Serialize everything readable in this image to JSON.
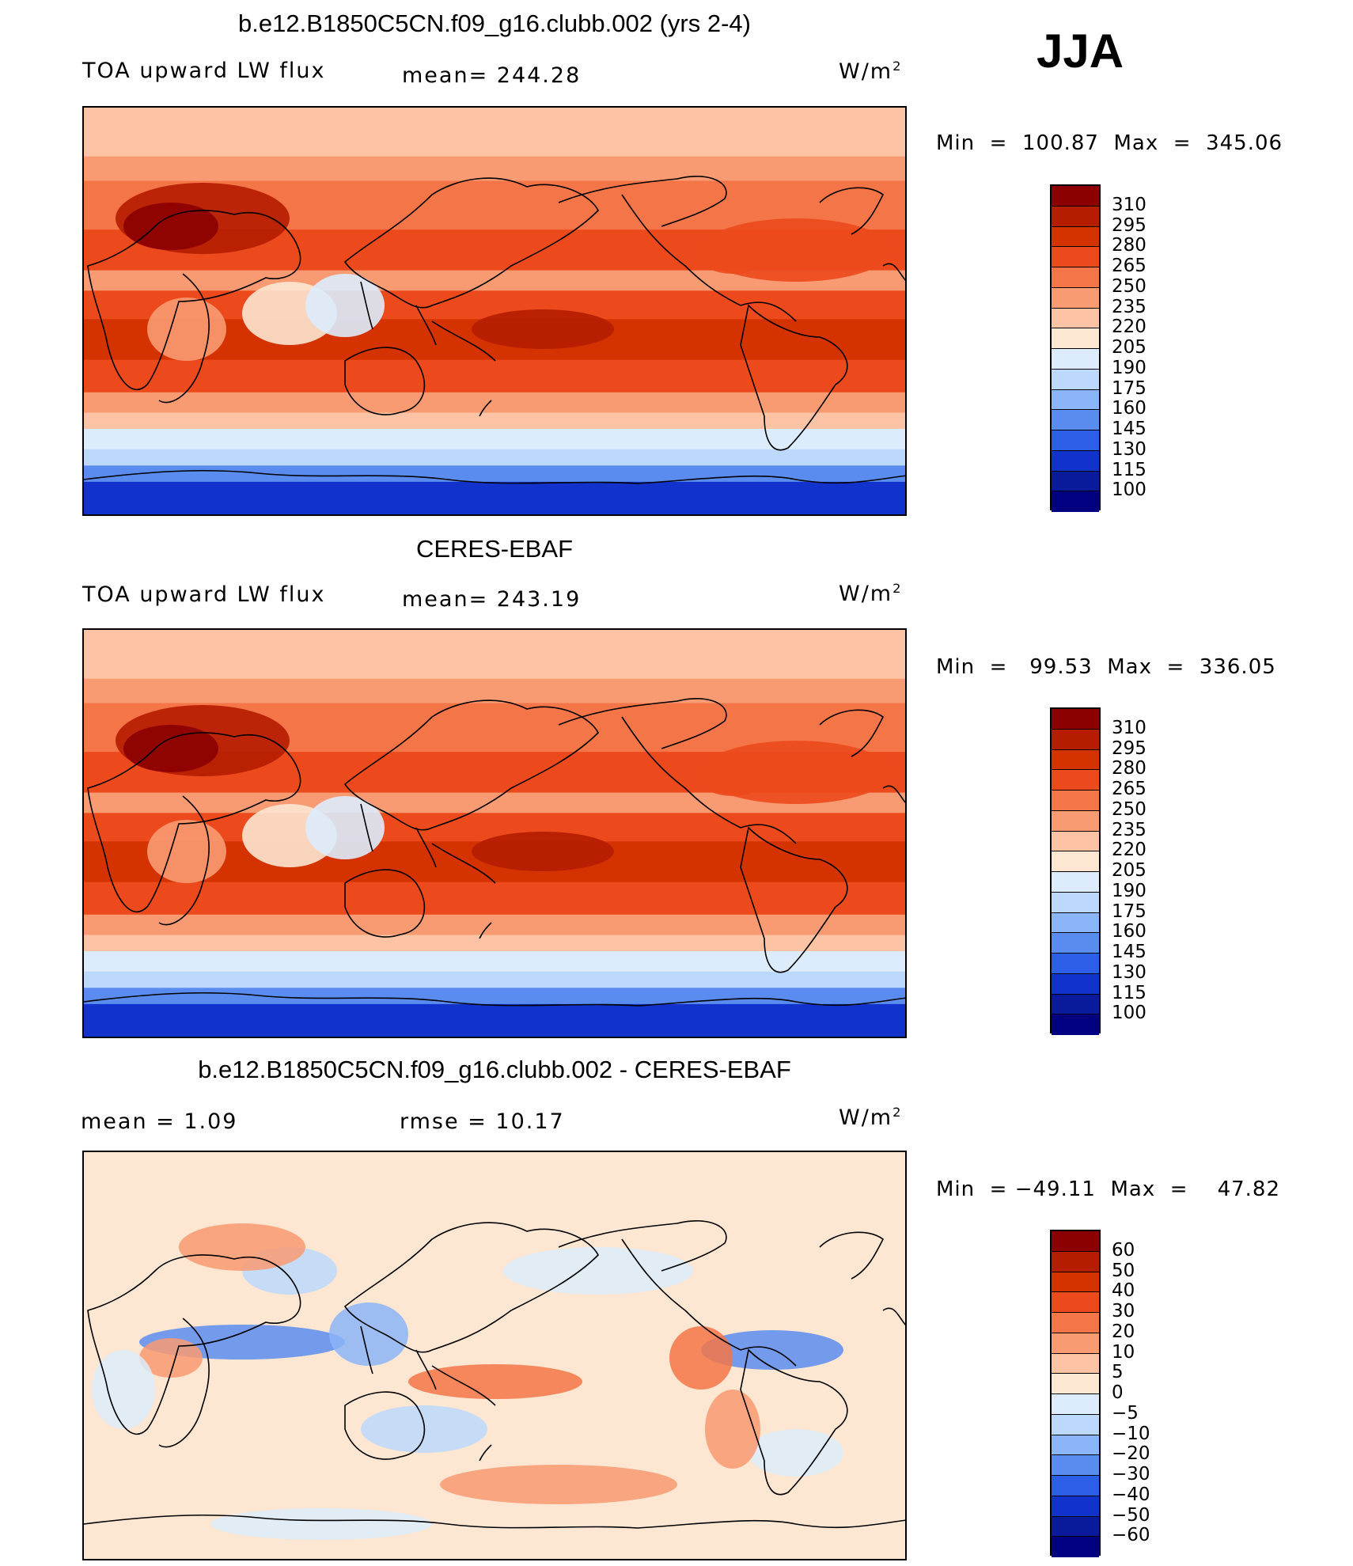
{
  "season": "JJA",
  "panels": [
    {
      "title": "b.e12.B1850C5CN.f09_g16.clubb.002 (yrs 2-4)",
      "left_label": "TOA upward LW flux",
      "center_label": "mean= 244.28",
      "units": "W/m",
      "units_exp": "2",
      "minmax": "Min  =  100.87  Max  =  345.06",
      "colorbar": {
        "labels": [
          "310",
          "295",
          "280",
          "265",
          "250",
          "235",
          "220",
          "205",
          "190",
          "175",
          "160",
          "145",
          "130",
          "115",
          "100"
        ],
        "colors": [
          "#8b0000",
          "#b51c00",
          "#d43300",
          "#ec4a1c",
          "#f47648",
          "#f89a72",
          "#fcc4a4",
          "#fde6d2",
          "#dcecfc",
          "#bcd8fc",
          "#8cb4f8",
          "#5a8cf0",
          "#2c5ee8",
          "#1232cc",
          "#0a1a9c",
          "#000080"
        ]
      },
      "map": "model"
    },
    {
      "title": "CERES-EBAF",
      "left_label": "TOA upward LW flux",
      "center_label": "mean= 243.19",
      "units": "W/m",
      "units_exp": "2",
      "minmax": "Min  =   99.53  Max  =  336.05",
      "colorbar": {
        "labels": [
          "310",
          "295",
          "280",
          "265",
          "250",
          "235",
          "220",
          "205",
          "190",
          "175",
          "160",
          "145",
          "130",
          "115",
          "100"
        ],
        "colors": [
          "#8b0000",
          "#b51c00",
          "#d43300",
          "#ec4a1c",
          "#f47648",
          "#f89a72",
          "#fcc4a4",
          "#fde6d2",
          "#dcecfc",
          "#bcd8fc",
          "#8cb4f8",
          "#5a8cf0",
          "#2c5ee8",
          "#1232cc",
          "#0a1a9c",
          "#000080"
        ]
      },
      "map": "obs"
    },
    {
      "title": "b.e12.B1850C5CN.f09_g16.clubb.002 - CERES-EBAF",
      "left_label": "mean  =     1.09",
      "center_label": "rmse  =    10.17",
      "units": "W/m",
      "units_exp": "2",
      "minmax": "Min  = −49.11  Max  =    47.82",
      "colorbar": {
        "labels": [
          "60",
          "50",
          "40",
          "30",
          "20",
          "10",
          "5",
          "0",
          "−5",
          "−10",
          "−20",
          "−30",
          "−40",
          "−50",
          "−60"
        ],
        "colors": [
          "#8b0000",
          "#b51c00",
          "#d43300",
          "#ec4a1c",
          "#f47648",
          "#f89a72",
          "#fcc4a4",
          "#fde6d2",
          "#dcecfc",
          "#bcd8fc",
          "#8cb4f8",
          "#5a8cf0",
          "#2c5ee8",
          "#1232cc",
          "#0a1a9c",
          "#000080"
        ]
      },
      "map": "diff"
    }
  ],
  "chart_data": {
    "type": "heatmap",
    "title": "JJA",
    "panels": [
      {
        "name": "b.e12.B1850C5CN.f09_g16.clubb.002 (yrs 2-4)",
        "variable": "TOA upward LW flux",
        "units": "W/m2",
        "mean": 244.28,
        "min": 100.87,
        "max": 345.06,
        "levels": [
          100,
          115,
          130,
          145,
          160,
          175,
          190,
          205,
          220,
          235,
          250,
          265,
          280,
          295,
          310
        ]
      },
      {
        "name": "CERES-EBAF",
        "variable": "TOA upward LW flux",
        "units": "W/m2",
        "mean": 243.19,
        "min": 99.53,
        "max": 336.05,
        "levels": [
          100,
          115,
          130,
          145,
          160,
          175,
          190,
          205,
          220,
          235,
          250,
          265,
          280,
          295,
          310
        ]
      },
      {
        "name": "b.e12.B1850C5CN.f09_g16.clubb.002 - CERES-EBAF",
        "units": "W/m2",
        "mean": 1.09,
        "rmse": 10.17,
        "min": -49.11,
        "max": 47.82,
        "levels": [
          -60,
          -50,
          -40,
          -30,
          -20,
          -10,
          -5,
          0,
          5,
          10,
          20,
          30,
          40,
          50,
          60
        ]
      }
    ]
  }
}
